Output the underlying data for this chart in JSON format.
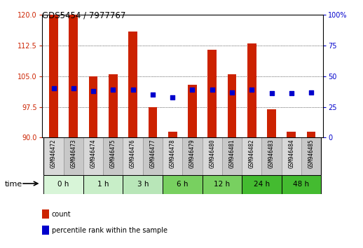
{
  "title": "GDS5454 / 7977767",
  "samples": [
    "GSM946472",
    "GSM946473",
    "GSM946474",
    "GSM946475",
    "GSM946476",
    "GSM946477",
    "GSM946478",
    "GSM946479",
    "GSM946480",
    "GSM946481",
    "GSM946482",
    "GSM946483",
    "GSM946484",
    "GSM946485"
  ],
  "count_values": [
    120,
    120,
    105,
    105.5,
    116,
    97.5,
    91.5,
    103,
    111.5,
    105.5,
    113,
    97,
    91.5,
    91.5
  ],
  "count_base": 90,
  "percentile_values": [
    40,
    40,
    38,
    39,
    39,
    35,
    33,
    39,
    39,
    37,
    39,
    36,
    36,
    37
  ],
  "percentile_scale_max": 100,
  "ylim_left": [
    90,
    120
  ],
  "yticks_left": [
    90,
    97.5,
    105,
    112.5,
    120
  ],
  "yticks_right": [
    0,
    25,
    50,
    75,
    100
  ],
  "bar_color": "#cc2200",
  "dot_color": "#0000cc",
  "groups": [
    {
      "label": "0 h",
      "indices": [
        0,
        1
      ],
      "color": "#d8f5d8"
    },
    {
      "label": "1 h",
      "indices": [
        2,
        3
      ],
      "color": "#c8eec8"
    },
    {
      "label": "3 h",
      "indices": [
        4,
        5
      ],
      "color": "#b8e6b8"
    },
    {
      "label": "6 h",
      "indices": [
        6,
        7
      ],
      "color": "#78d060"
    },
    {
      "label": "12 h",
      "indices": [
        8,
        9
      ],
      "color": "#78d060"
    },
    {
      "label": "24 h",
      "indices": [
        10,
        11
      ],
      "color": "#44bb30"
    },
    {
      "label": "48 h",
      "indices": [
        12,
        13
      ],
      "color": "#44bb30"
    }
  ],
  "time_label": "time",
  "legend_count_label": "count",
  "legend_pct_label": "percentile rank within the sample",
  "bar_width": 0.45,
  "dot_size": 18,
  "sample_cell_colors": [
    "#d8d8d8",
    "#c8c8c8"
  ]
}
